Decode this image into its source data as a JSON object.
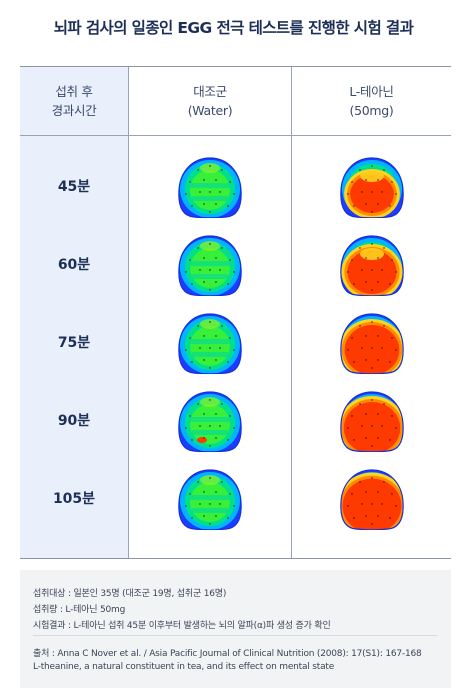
{
  "title": "뇌파 검사의 일종인 EGG 전극 테스트를 진행한 시험 결과",
  "headers": {
    "time_line1": "섭취 후",
    "time_line2": "경과시간",
    "control_line1": "대조군",
    "control_line2": "(Water)",
    "theanine_line1": "L-테아닌",
    "theanine_line2": "(50mg)"
  },
  "rows": [
    {
      "time": "45분",
      "control_level": 0.15,
      "theanine_level": 0.55
    },
    {
      "time": "60분",
      "control_level": 0.2,
      "theanine_level": 0.7
    },
    {
      "time": "75분",
      "control_level": 0.2,
      "theanine_level": 0.85
    },
    {
      "time": "90분",
      "control_level": 0.3,
      "theanine_level": 0.9
    },
    {
      "time": "105분",
      "control_level": 0.2,
      "theanine_level": 0.97
    }
  ],
  "notes": {
    "subjects": "섭취대상 : 일본인 35명 (대조군 19명, 섭취군 16명)",
    "dose": "섭취량 : L-테아닌 50mg",
    "result": "시험결과 : L-테아닌 섭취 45분 이후부터 발생하는 뇌의 알파(α)파 생성 증가 확인",
    "source_line1": "출처 : Anna C Nover et al. / Asia Pacific Journal of Clinical Nutrition (2008): 17(S1): 167-168",
    "source_line2": "L-theanine, a natural constituent in tea, and its effect on mental state"
  },
  "colors": {
    "title": "#1d2f57",
    "label_column_bg": "#eaf0fb",
    "note_bg": "#f2f3f5",
    "high_activity": "#ff3a00",
    "low_activity": "#1e3cff"
  }
}
